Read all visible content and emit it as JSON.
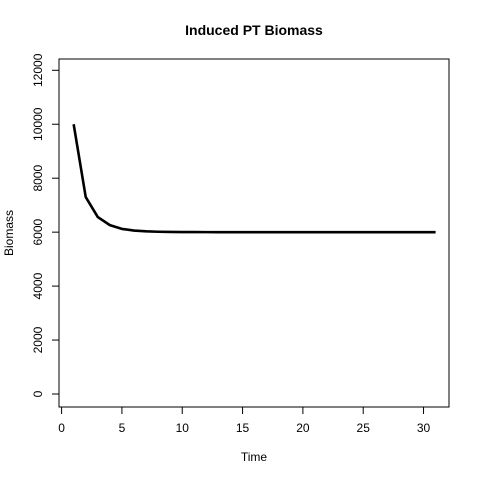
{
  "chart_data": {
    "type": "line",
    "title": "Induced PT Biomass",
    "xlabel": "Time",
    "ylabel": "Biomass",
    "xlim": [
      0,
      31
    ],
    "ylim": [
      0,
      12000
    ],
    "xticks": [
      0,
      5,
      10,
      15,
      20,
      25,
      30
    ],
    "yticks": [
      0,
      2000,
      4000,
      6000,
      8000,
      10000,
      12000
    ],
    "grid": false,
    "legend": "none",
    "series": [
      {
        "color": "#000000",
        "x": [
          1,
          2,
          3,
          4,
          5,
          6,
          7,
          8,
          9,
          10,
          11,
          12,
          13,
          14,
          15,
          16,
          17,
          18,
          19,
          20,
          21,
          22,
          23,
          24,
          25,
          26,
          27,
          28,
          29,
          30,
          31
        ],
        "y": [
          10000,
          7300,
          6560,
          6260,
          6120,
          6060,
          6030,
          6015,
          6008,
          6004,
          6002,
          6001,
          6000,
          6000,
          6000,
          6000,
          6000,
          6000,
          6000,
          6000,
          6000,
          6000,
          6000,
          6000,
          6000,
          6000,
          6000,
          6000,
          6000,
          6000,
          6000
        ]
      }
    ]
  }
}
